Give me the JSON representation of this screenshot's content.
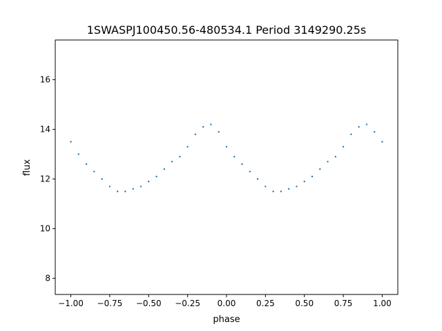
{
  "chart_data": {
    "type": "scatter",
    "title": "1SWASPJ100450.56-480534.1 Period 3149290.25s",
    "xlabel": "phase",
    "ylabel": "flux",
    "xlim": [
      -1.1,
      1.1
    ],
    "ylim": [
      7.35,
      17.6
    ],
    "xticks": [
      -1.0,
      -0.75,
      -0.5,
      -0.25,
      0.0,
      0.25,
      0.5,
      0.75,
      1.0
    ],
    "xtick_labels": [
      "−1.00",
      "−0.75",
      "−0.50",
      "−0.25",
      "0.00",
      "0.25",
      "0.50",
      "0.75",
      "1.00"
    ],
    "yticks": [
      8,
      10,
      12,
      14,
      16
    ],
    "ytick_labels": [
      "8",
      "10",
      "12",
      "14",
      "16"
    ],
    "grid": false,
    "marker_color": "#1f77b4",
    "series": [
      {
        "x": [
          -1.0,
          -0.95,
          -0.9,
          -0.85,
          -0.8,
          -0.75,
          -0.7,
          -0.65,
          -0.6,
          -0.55,
          -0.5,
          -0.45,
          -0.4,
          -0.35,
          -0.3,
          -0.25,
          -0.2,
          -0.15,
          -0.1,
          -0.05,
          0.0,
          0.05,
          0.1,
          0.15,
          0.2,
          0.25,
          0.3,
          0.35,
          0.4,
          0.45,
          0.5,
          0.55,
          0.6,
          0.65,
          0.7,
          0.75,
          0.8,
          0.85,
          0.9,
          0.95,
          1.0
        ],
        "y": [
          13.5,
          13.0,
          12.6,
          12.3,
          12.0,
          11.7,
          11.5,
          11.5,
          11.6,
          11.7,
          11.9,
          12.1,
          12.4,
          12.7,
          12.9,
          13.3,
          13.8,
          14.1,
          14.2,
          13.9,
          13.3,
          12.9,
          12.6,
          12.3,
          12.0,
          11.7,
          11.5,
          11.5,
          11.6,
          11.7,
          11.9,
          12.1,
          12.4,
          12.7,
          12.9,
          13.3,
          13.8,
          14.1,
          14.2,
          13.9,
          13.5
        ]
      }
    ]
  }
}
